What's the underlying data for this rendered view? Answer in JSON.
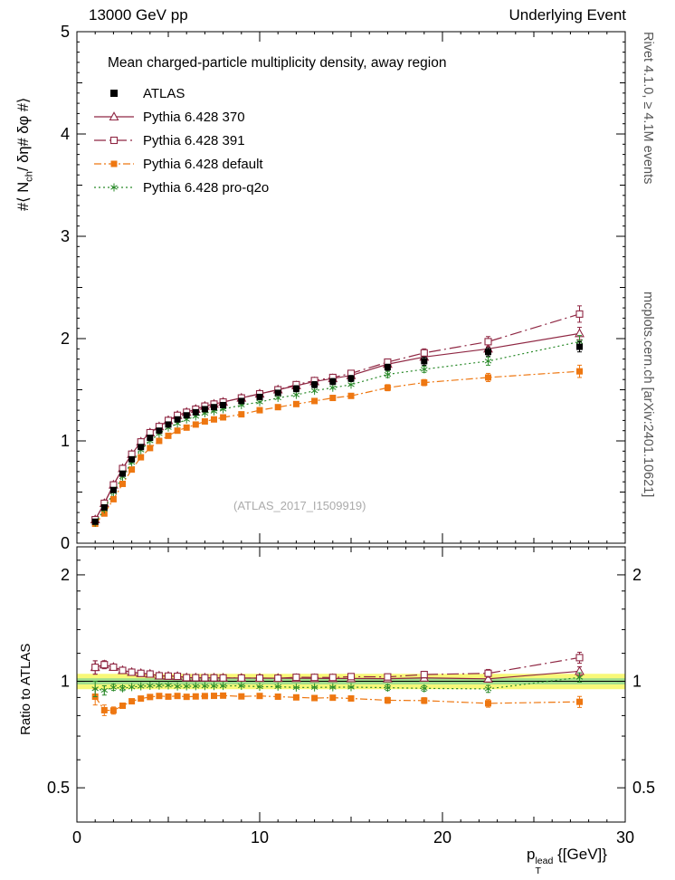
{
  "header": {
    "beam": "13000 GeV pp",
    "topic": "Underlying Event"
  },
  "side": {
    "right_top": "Rivet 4.1.0, ≥ 4.1M events",
    "right_bottom": "mcplots.cern.ch [arXiv:2401.10621]",
    "watermark": "(ATLAS_2017_I1509919)"
  },
  "labels": {
    "ylabel": {
      "pre": "#⟨ N",
      "sub": "ch",
      "post": "/ δη# δφ #⟩"
    },
    "ratio_ylabel": "Ratio to ATLAS",
    "xlabel": {
      "base": "p",
      "sup": "lead",
      "sub": "T",
      "rest": " {[GeV]}"
    }
  },
  "chart_data": {
    "type": "line",
    "title": "Mean charged-particle multiplicity density, away region",
    "xlabel": "pT^lead {[GeV]}",
    "ylabel": "⟨ N_ch / δη δφ ⟩",
    "ratio_ylabel": "Ratio to ATLAS",
    "xlim": [
      0,
      30
    ],
    "xticks": [
      0,
      10,
      20,
      30
    ],
    "main_ylim": [
      0,
      5
    ],
    "main_yticks": [
      0,
      1,
      2,
      3,
      4,
      5
    ],
    "ratio_ylim": [
      0.4,
      2.4
    ],
    "ratio_scale": "log",
    "ratio_yticks": [
      0.5,
      1,
      2
    ],
    "ratio_minor_yticks": [
      0.4,
      0.6,
      0.7,
      0.8,
      0.9,
      1.2,
      1.4,
      1.6,
      1.8,
      2.2
    ],
    "ratio_reference": 1,
    "ratio_band": {
      "outer": 0.05,
      "inner": 0.02,
      "outer_color": "#f8f878",
      "inner_color": "#90d890"
    },
    "x": [
      1,
      1.5,
      2,
      2.5,
      3,
      3.5,
      4,
      4.5,
      5,
      5.5,
      6,
      6.5,
      7,
      7.5,
      8,
      9,
      10,
      11,
      12,
      13,
      14,
      15,
      17,
      19,
      22.5,
      27.5
    ],
    "series": [
      {
        "name": "ATLAS",
        "marker": "square-filled",
        "color": "#000000",
        "line": "none",
        "values": [
          0.21,
          0.35,
          0.52,
          0.68,
          0.82,
          0.94,
          1.03,
          1.1,
          1.16,
          1.21,
          1.25,
          1.28,
          1.31,
          1.33,
          1.35,
          1.39,
          1.43,
          1.47,
          1.51,
          1.55,
          1.58,
          1.61,
          1.72,
          1.78,
          1.87,
          1.92
        ],
        "err": [
          0.02,
          0.02,
          0.02,
          0.02,
          0.02,
          0.02,
          0.02,
          0.02,
          0.02,
          0.02,
          0.02,
          0.02,
          0.02,
          0.02,
          0.02,
          0.02,
          0.02,
          0.02,
          0.03,
          0.03,
          0.03,
          0.03,
          0.03,
          0.04,
          0.04,
          0.05
        ]
      },
      {
        "name": "Pythia 6.428 370",
        "marker": "triangle-open",
        "color": "#8f2743",
        "line": "solid",
        "values": [
          0.23,
          0.39,
          0.57,
          0.73,
          0.87,
          0.99,
          1.08,
          1.14,
          1.2,
          1.25,
          1.28,
          1.31,
          1.34,
          1.36,
          1.38,
          1.42,
          1.46,
          1.5,
          1.54,
          1.58,
          1.61,
          1.64,
          1.75,
          1.82,
          1.9,
          2.05
        ],
        "err": [
          0.01,
          0.01,
          0.01,
          0.01,
          0.01,
          0.01,
          0.01,
          0.01,
          0.01,
          0.01,
          0.01,
          0.01,
          0.01,
          0.01,
          0.01,
          0.01,
          0.01,
          0.02,
          0.02,
          0.02,
          0.02,
          0.02,
          0.03,
          0.03,
          0.04,
          0.06
        ]
      },
      {
        "name": "Pythia 6.428 391",
        "marker": "square-open",
        "color": "#8f2743",
        "line": "longdashdot",
        "values": [
          0.23,
          0.39,
          0.57,
          0.73,
          0.87,
          0.99,
          1.08,
          1.14,
          1.2,
          1.25,
          1.28,
          1.31,
          1.34,
          1.36,
          1.38,
          1.42,
          1.46,
          1.5,
          1.55,
          1.59,
          1.62,
          1.66,
          1.77,
          1.86,
          1.97,
          2.24
        ],
        "err": [
          0.01,
          0.01,
          0.01,
          0.01,
          0.01,
          0.01,
          0.01,
          0.01,
          0.01,
          0.01,
          0.01,
          0.01,
          0.01,
          0.01,
          0.01,
          0.01,
          0.01,
          0.02,
          0.02,
          0.02,
          0.02,
          0.03,
          0.03,
          0.04,
          0.05,
          0.08
        ]
      },
      {
        "name": "Pythia 6.428 default",
        "marker": "square-filled",
        "color": "#ee7711",
        "line": "dashdot",
        "values": [
          0.19,
          0.29,
          0.43,
          0.58,
          0.72,
          0.84,
          0.93,
          1.0,
          1.05,
          1.1,
          1.13,
          1.16,
          1.19,
          1.21,
          1.23,
          1.26,
          1.3,
          1.33,
          1.36,
          1.39,
          1.42,
          1.44,
          1.52,
          1.57,
          1.62,
          1.68
        ],
        "err": [
          0.01,
          0.01,
          0.01,
          0.01,
          0.01,
          0.01,
          0.01,
          0.01,
          0.01,
          0.01,
          0.01,
          0.01,
          0.01,
          0.01,
          0.01,
          0.01,
          0.01,
          0.02,
          0.02,
          0.02,
          0.02,
          0.02,
          0.03,
          0.03,
          0.04,
          0.06
        ]
      },
      {
        "name": "Pythia 6.428 pro-q2o",
        "marker": "star-open",
        "color": "#2a8a2a",
        "line": "dotted",
        "values": [
          0.2,
          0.33,
          0.5,
          0.65,
          0.79,
          0.91,
          1.0,
          1.07,
          1.13,
          1.17,
          1.21,
          1.24,
          1.27,
          1.29,
          1.31,
          1.35,
          1.38,
          1.42,
          1.45,
          1.49,
          1.52,
          1.55,
          1.65,
          1.7,
          1.78,
          1.97
        ],
        "err": [
          0.01,
          0.01,
          0.01,
          0.01,
          0.01,
          0.01,
          0.01,
          0.01,
          0.01,
          0.01,
          0.01,
          0.01,
          0.01,
          0.01,
          0.01,
          0.01,
          0.01,
          0.02,
          0.02,
          0.02,
          0.02,
          0.02,
          0.03,
          0.03,
          0.04,
          0.06
        ]
      }
    ]
  }
}
